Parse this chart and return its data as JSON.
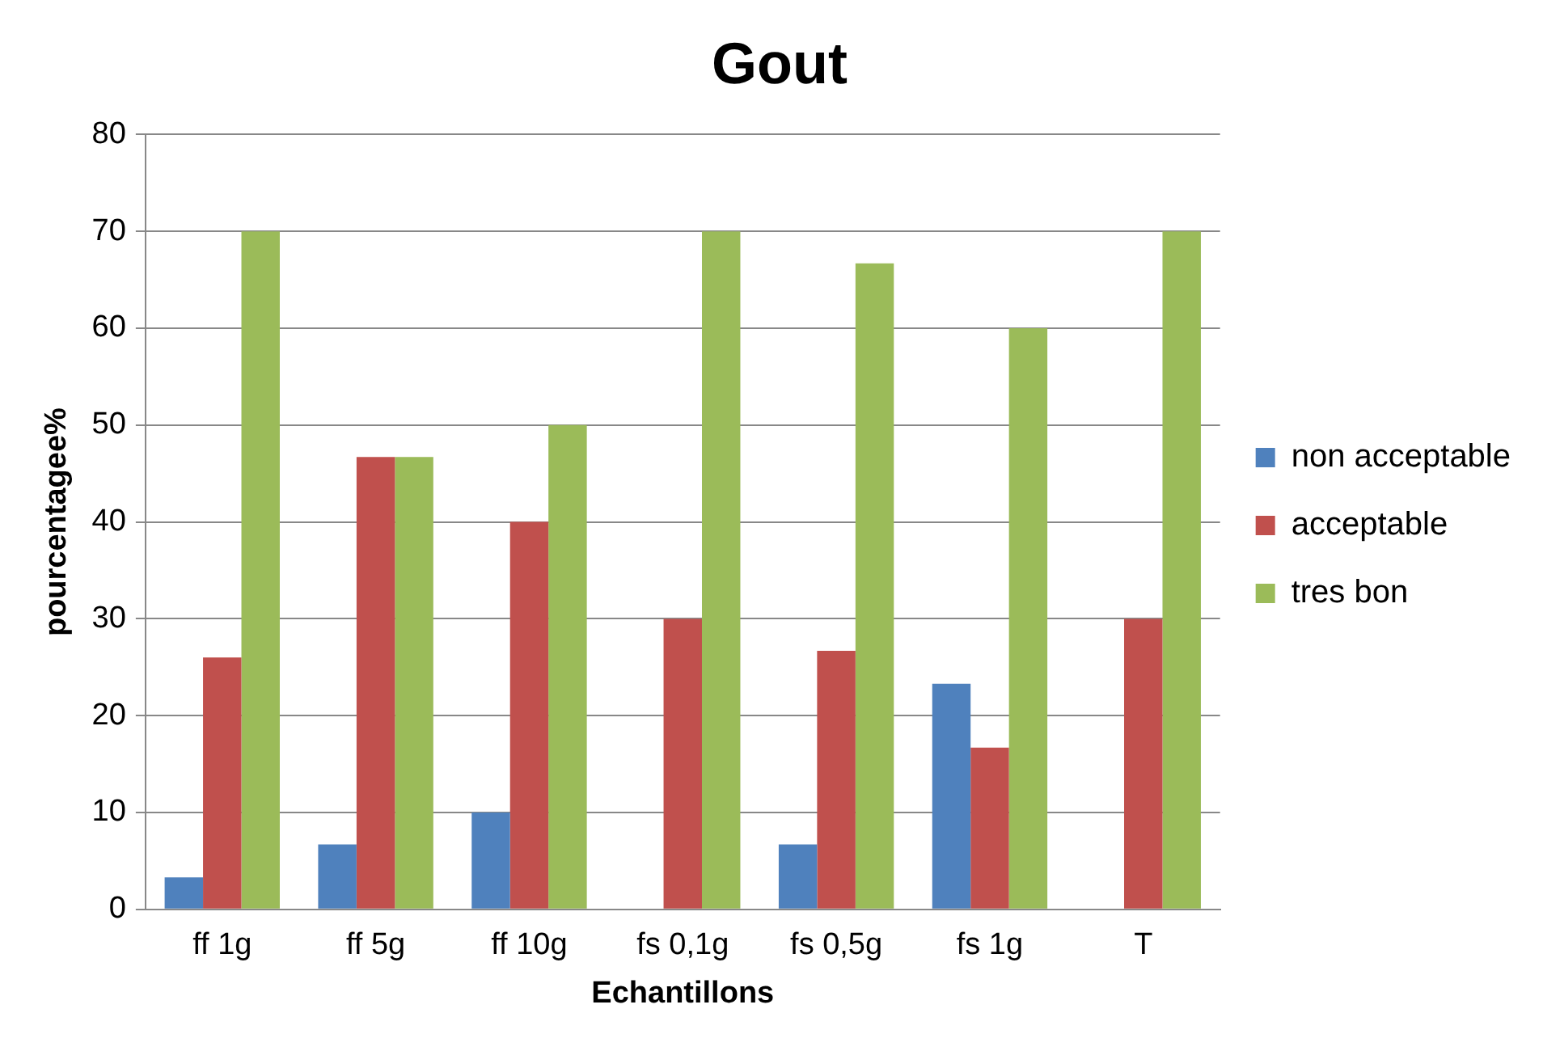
{
  "chart_data": {
    "type": "bar",
    "title": "Gout",
    "xlabel": "Echantillons",
    "ylabel": "pourcentagee%",
    "categories": [
      "ff 1g",
      "ff 5g",
      "ff 10g",
      "fs 0,1g",
      "fs 0,5g",
      "fs 1g",
      "T"
    ],
    "series": [
      {
        "name": "non acceptable",
        "color": "#4f81bd",
        "values": [
          3.3,
          6.7,
          10,
          0,
          6.7,
          23.3,
          0
        ]
      },
      {
        "name": "acceptable",
        "color": "#c0504d",
        "values": [
          26,
          46.7,
          40,
          30,
          26.7,
          16.7,
          30
        ]
      },
      {
        "name": "tres bon",
        "color": "#9bbb59",
        "values": [
          70,
          46.7,
          50,
          70,
          66.7,
          60,
          70
        ]
      }
    ],
    "ylim": [
      0,
      80
    ],
    "yticks": [
      0,
      10,
      20,
      30,
      40,
      50,
      60,
      70,
      80
    ],
    "grid": "y",
    "legend": "right"
  }
}
